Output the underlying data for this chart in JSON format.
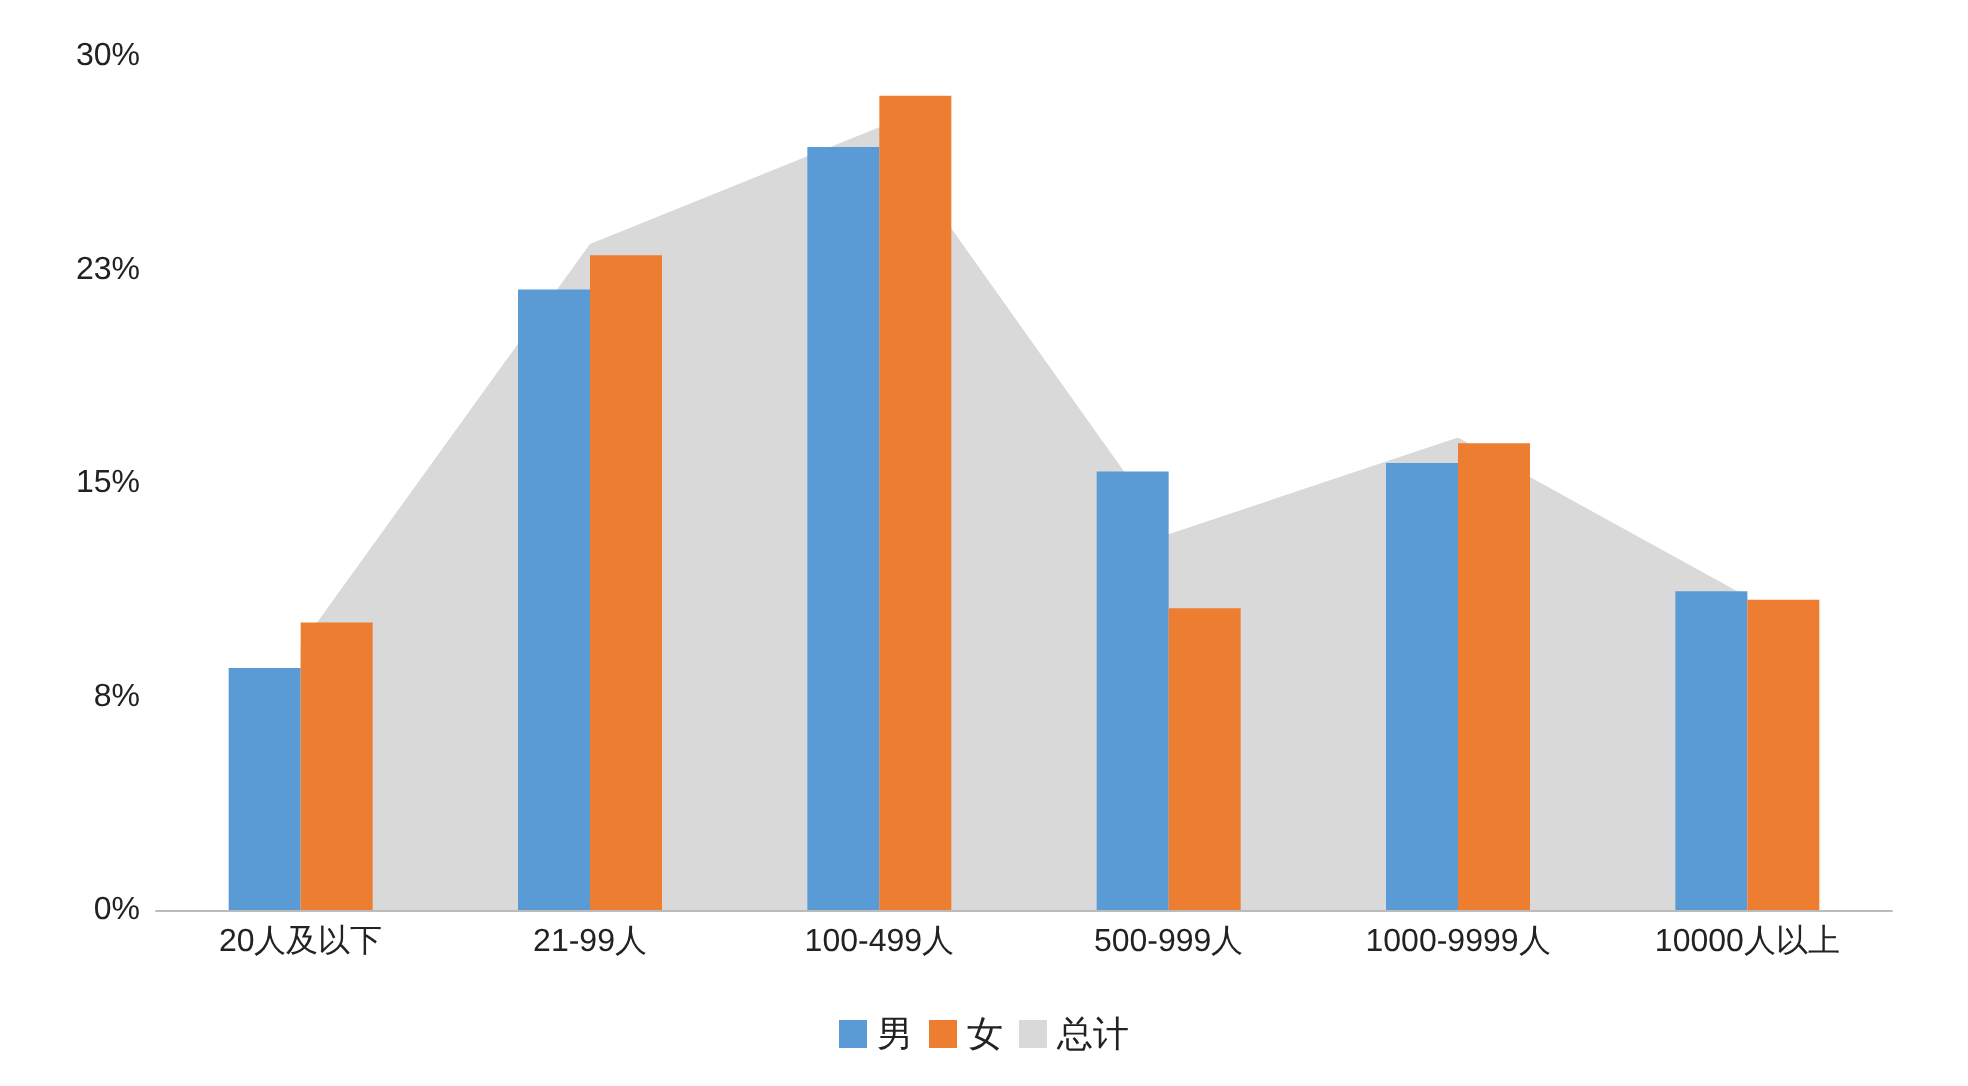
{
  "chart_data": {
    "type": "bar",
    "categories": [
      "20人及以下",
      "21-99人",
      "100-499人",
      "500-999人",
      "1000-9999人",
      "10000人以上"
    ],
    "series": [
      {
        "name": "男",
        "color": "#5b9bd5",
        "values": [
          8.5,
          21.8,
          26.8,
          15.4,
          15.7,
          11.2
        ]
      },
      {
        "name": "女",
        "color": "#ed7d31",
        "values": [
          10.1,
          23.0,
          28.6,
          10.6,
          16.4,
          10.9
        ]
      },
      {
        "name": "总计",
        "type": "area",
        "color": "#d9d9d9",
        "values": [
          9.3,
          23.4,
          27.5,
          13.2,
          16.6,
          11.0
        ]
      }
    ],
    "ylim": [
      0,
      30
    ],
    "yticks": [
      {
        "value": 0,
        "label": "0%"
      },
      {
        "value": 7.5,
        "label": "8%"
      },
      {
        "value": 15,
        "label": "15%"
      },
      {
        "value": 22.5,
        "label": "23%"
      },
      {
        "value": 30,
        "label": "30%"
      }
    ],
    "grid": false,
    "legend": "bottom"
  }
}
